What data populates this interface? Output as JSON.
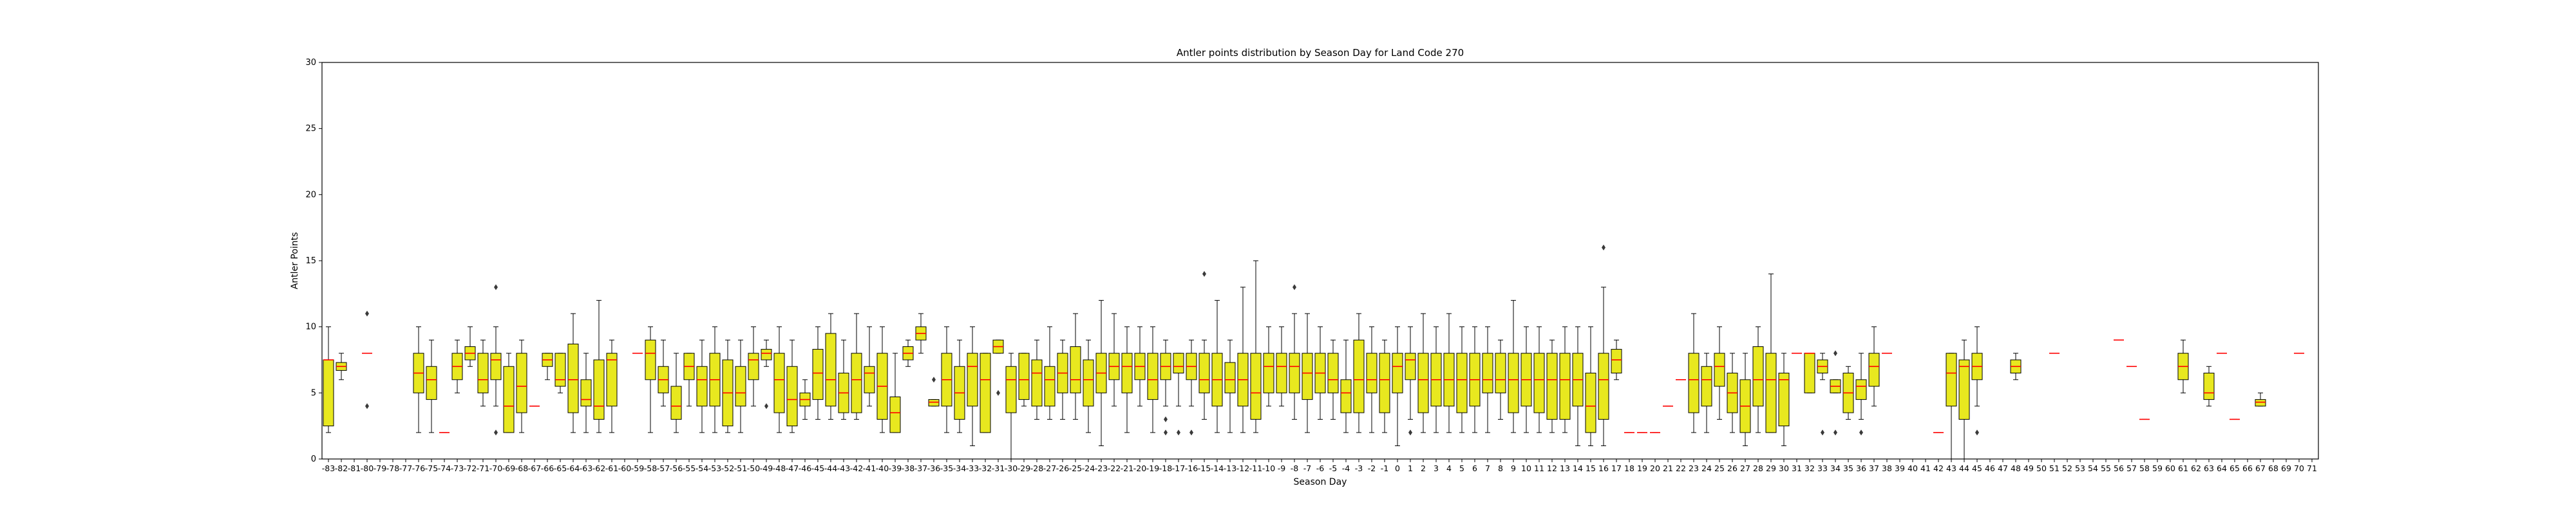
{
  "chart_data": {
    "type": "box",
    "title": "Antler points distribution by Season Day for Land Code 270",
    "xlabel": "Season Day",
    "ylabel": "Antler Points",
    "ylim": [
      0,
      30
    ],
    "yticks": [
      0,
      5,
      10,
      15,
      20,
      25,
      30
    ],
    "grid": false,
    "colors": {
      "box_fill": "#e8e81f",
      "median": "#ff0000",
      "edge": "#000000"
    },
    "categories": [
      "-83",
      "-82",
      "-81",
      "-80",
      "-79",
      "-78",
      "-77",
      "-76",
      "-75",
      "-74",
      "-73",
      "-72",
      "-71",
      "-70",
      "-69",
      "-68",
      "-67",
      "-66",
      "-65",
      "-64",
      "-63",
      "-62",
      "-61",
      "-60",
      "-59",
      "-58",
      "-57",
      "-56",
      "-55",
      "-54",
      "-53",
      "-52",
      "-51",
      "-50",
      "-49",
      "-48",
      "-47",
      "-46",
      "-45",
      "-44",
      "-43",
      "-42",
      "-41",
      "-40",
      "-39",
      "-38",
      "-37",
      "-36",
      "-35",
      "-34",
      "-33",
      "-32",
      "-31",
      "-30",
      "-29",
      "-28",
      "-27",
      "-26",
      "-25",
      "-24",
      "-23",
      "-22",
      "-21",
      "-20",
      "-19",
      "-18",
      "-17",
      "-16",
      "-15",
      "-14",
      "-13",
      "-12",
      "-11",
      "-10",
      "-9",
      "-8",
      "-7",
      "-6",
      "-5",
      "-4",
      "-3",
      "-2",
      "-1",
      "0",
      "1",
      "2",
      "3",
      "4",
      "5",
      "6",
      "7",
      "8",
      "9",
      "10",
      "11",
      "12",
      "13",
      "14",
      "15",
      "16",
      "17",
      "18",
      "19",
      "20",
      "21",
      "22",
      "23",
      "24",
      "25",
      "26",
      "27",
      "28",
      "29",
      "30",
      "31",
      "32",
      "33",
      "34",
      "35",
      "36",
      "37",
      "38",
      "39",
      "40",
      "41",
      "42",
      "43",
      "44",
      "45",
      "46",
      "47",
      "48",
      "49",
      "50",
      "51",
      "52",
      "53",
      "54",
      "55",
      "56",
      "57",
      "58",
      "59",
      "60",
      "61",
      "62",
      "63",
      "64",
      "65",
      "66",
      "67",
      "68",
      "69",
      "70",
      "71"
    ],
    "boxes": {
      "-83": {
        "whislo": 2,
        "q1": 2.5,
        "med": 7.5,
        "q3": 7.5,
        "whishi": 10
      },
      "-82": {
        "whislo": 6,
        "q1": 6.7,
        "med": 7,
        "q3": 7.3,
        "whishi": 8
      },
      "-80": {
        "whislo": 8,
        "q1": 8,
        "med": 8,
        "q3": 8,
        "whishi": 8,
        "fliers": [
          11,
          4
        ]
      },
      "-76": {
        "whislo": 2,
        "q1": 5,
        "med": 6.5,
        "q3": 8,
        "whishi": 10
      },
      "-75": {
        "whislo": 2,
        "q1": 4.5,
        "med": 6,
        "q3": 7,
        "whishi": 9
      },
      "-74": {
        "whislo": 2,
        "q1": 2,
        "med": 2,
        "q3": 2,
        "whishi": 2
      },
      "-73": {
        "whislo": 5,
        "q1": 6,
        "med": 7,
        "q3": 8,
        "whishi": 9
      },
      "-72": {
        "whislo": 7,
        "q1": 7.5,
        "med": 8,
        "q3": 8.5,
        "whishi": 10
      },
      "-71": {
        "whislo": 4,
        "q1": 5,
        "med": 6,
        "q3": 8,
        "whishi": 9
      },
      "-70": {
        "whislo": 4,
        "q1": 6,
        "med": 7.5,
        "q3": 8,
        "whishi": 10,
        "fliers": [
          13,
          2
        ]
      },
      "-69": {
        "whislo": 2,
        "q1": 2,
        "med": 4,
        "q3": 7,
        "whishi": 8
      },
      "-68": {
        "whislo": 2,
        "q1": 3.5,
        "med": 5.5,
        "q3": 8,
        "whishi": 9
      },
      "-67": {
        "whislo": 4,
        "q1": 4,
        "med": 4,
        "q3": 4,
        "whishi": 4
      },
      "-66": {
        "whislo": 6,
        "q1": 7,
        "med": 7.5,
        "q3": 8,
        "whishi": 8
      },
      "-65": {
        "whislo": 5,
        "q1": 5.5,
        "med": 6,
        "q3": 8,
        "whishi": 8
      },
      "-64": {
        "whislo": 2,
        "q1": 3.5,
        "med": 6,
        "q3": 8.7,
        "whishi": 11
      },
      "-63": {
        "whislo": 2,
        "q1": 4,
        "med": 4.5,
        "q3": 6,
        "whishi": 8
      },
      "-62": {
        "whislo": 2,
        "q1": 3,
        "med": 4,
        "q3": 7.5,
        "whishi": 12
      },
      "-61": {
        "whislo": 2,
        "q1": 4,
        "med": 7.5,
        "q3": 8,
        "whishi": 9
      },
      "-59": {
        "whislo": 8,
        "q1": 8,
        "med": 8,
        "q3": 8,
        "whishi": 8
      },
      "-58": {
        "whislo": 2,
        "q1": 6,
        "med": 8,
        "q3": 9,
        "whishi": 10
      },
      "-57": {
        "whislo": 4,
        "q1": 5,
        "med": 6,
        "q3": 7,
        "whishi": 9
      },
      "-56": {
        "whislo": 2,
        "q1": 3,
        "med": 4,
        "q3": 5.5,
        "whishi": 8
      },
      "-55": {
        "whislo": 4,
        "q1": 6,
        "med": 7,
        "q3": 8,
        "whishi": 8
      },
      "-54": {
        "whislo": 2,
        "q1": 4,
        "med": 6,
        "q3": 7,
        "whishi": 9
      },
      "-53": {
        "whislo": 2,
        "q1": 4,
        "med": 6,
        "q3": 8,
        "whishi": 10
      },
      "-52": {
        "whislo": 2,
        "q1": 2.5,
        "med": 5,
        "q3": 7.5,
        "whishi": 9
      },
      "-51": {
        "whislo": 2,
        "q1": 4,
        "med": 5,
        "q3": 7,
        "whishi": 9
      },
      "-50": {
        "whislo": 4,
        "q1": 6,
        "med": 7.5,
        "q3": 8,
        "whishi": 10
      },
      "-49": {
        "whislo": 7,
        "q1": 7.5,
        "med": 8,
        "q3": 8.3,
        "whishi": 9,
        "fliers": [
          4
        ]
      },
      "-48": {
        "whislo": 2,
        "q1": 3.5,
        "med": 6,
        "q3": 8,
        "whishi": 10
      },
      "-47": {
        "whislo": 2,
        "q1": 2.5,
        "med": 4.5,
        "q3": 7,
        "whishi": 9
      },
      "-46": {
        "whislo": 3,
        "q1": 4,
        "med": 4.5,
        "q3": 5,
        "whishi": 6
      },
      "-45": {
        "whislo": 3,
        "q1": 4.5,
        "med": 6.5,
        "q3": 8.3,
        "whishi": 10
      },
      "-44": {
        "whislo": 3,
        "q1": 4,
        "med": 6,
        "q3": 9.5,
        "whishi": 11
      },
      "-43": {
        "whislo": 3,
        "q1": 3.5,
        "med": 5,
        "q3": 6.5,
        "whishi": 9
      },
      "-42": {
        "whislo": 3,
        "q1": 3.5,
        "med": 6,
        "q3": 8,
        "whishi": 11
      },
      "-41": {
        "whislo": 4,
        "q1": 5,
        "med": 6.5,
        "q3": 7,
        "whishi": 10
      },
      "-40": {
        "whislo": 2,
        "q1": 3,
        "med": 5.5,
        "q3": 8,
        "whishi": 10
      },
      "-39": {
        "whislo": 2,
        "q1": 2,
        "med": 3.5,
        "q3": 4.7,
        "whishi": 8
      },
      "-38": {
        "whislo": 7,
        "q1": 7.5,
        "med": 8,
        "q3": 8.5,
        "whishi": 9
      },
      "-37": {
        "whislo": 8,
        "q1": 9,
        "med": 9.5,
        "q3": 10,
        "whishi": 11
      },
      "-36": {
        "whislo": 4,
        "q1": 4,
        "med": 4.3,
        "q3": 4.5,
        "whishi": 4.5,
        "fliers": [
          6
        ]
      },
      "-35": {
        "whislo": 2,
        "q1": 4,
        "med": 6,
        "q3": 8,
        "whishi": 10
      },
      "-34": {
        "whislo": 2,
        "q1": 3,
        "med": 5,
        "q3": 7,
        "whishi": 9
      },
      "-33": {
        "whislo": 1,
        "q1": 4,
        "med": 7,
        "q3": 8,
        "whishi": 10
      },
      "-32": {
        "whislo": 2,
        "q1": 2,
        "med": 6,
        "q3": 8,
        "whishi": 8
      },
      "-31": {
        "whislo": 8,
        "q1": 8,
        "med": 8.5,
        "q3": 9,
        "whishi": 9,
        "fliers": [
          5
        ]
      },
      "-30": {
        "whislo": 0,
        "q1": 3.5,
        "med": 6,
        "q3": 7,
        "whishi": 8
      },
      "-29": {
        "whislo": 4,
        "q1": 4.5,
        "med": 6,
        "q3": 8,
        "whishi": 8
      },
      "-28": {
        "whislo": 3,
        "q1": 4,
        "med": 6.5,
        "q3": 7.5,
        "whishi": 9
      },
      "-27": {
        "whislo": 3,
        "q1": 4,
        "med": 6,
        "q3": 7,
        "whishi": 10
      },
      "-26": {
        "whislo": 3,
        "q1": 5,
        "med": 6.5,
        "q3": 8,
        "whishi": 9
      },
      "-25": {
        "whislo": 3,
        "q1": 5,
        "med": 6,
        "q3": 8.5,
        "whishi": 11
      },
      "-24": {
        "whislo": 2,
        "q1": 4,
        "med": 6,
        "q3": 7.5,
        "whishi": 9
      },
      "-23": {
        "whislo": 1,
        "q1": 5,
        "med": 6.5,
        "q3": 8,
        "whishi": 12
      },
      "-22": {
        "whislo": 4,
        "q1": 6,
        "med": 7,
        "q3": 8,
        "whishi": 11
      },
      "-21": {
        "whislo": 2,
        "q1": 5,
        "med": 7,
        "q3": 8,
        "whishi": 10
      },
      "-20": {
        "whislo": 4,
        "q1": 6,
        "med": 7,
        "q3": 8,
        "whishi": 10
      },
      "-19": {
        "whislo": 2,
        "q1": 4.5,
        "med": 6,
        "q3": 8,
        "whishi": 10
      },
      "-18": {
        "whislo": 4,
        "q1": 6,
        "med": 7,
        "q3": 8,
        "whishi": 9,
        "fliers": [
          3,
          2
        ]
      },
      "-17": {
        "whislo": 4,
        "q1": 6.5,
        "med": 7,
        "q3": 8,
        "whishi": 8,
        "fliers": [
          2
        ]
      },
      "-16": {
        "whislo": 4,
        "q1": 6,
        "med": 7,
        "q3": 8,
        "whishi": 9,
        "fliers": [
          2
        ]
      },
      "-15": {
        "whislo": 3,
        "q1": 5,
        "med": 6,
        "q3": 8,
        "whishi": 9,
        "fliers": [
          14
        ]
      },
      "-14": {
        "whislo": 2,
        "q1": 4,
        "med": 6,
        "q3": 8,
        "whishi": 12
      },
      "-13": {
        "whislo": 2,
        "q1": 5,
        "med": 6,
        "q3": 7.3,
        "whishi": 9
      },
      "-12": {
        "whislo": 2,
        "q1": 4,
        "med": 6,
        "q3": 8,
        "whishi": 13
      },
      "-11": {
        "whislo": 2,
        "q1": 3,
        "med": 5,
        "q3": 8,
        "whishi": 15
      },
      "-10": {
        "whislo": 4,
        "q1": 5,
        "med": 7,
        "q3": 8,
        "whishi": 10
      },
      "-9": {
        "whislo": 4,
        "q1": 5,
        "med": 7,
        "q3": 8,
        "whishi": 10
      },
      "-8": {
        "whislo": 3,
        "q1": 5,
        "med": 7,
        "q3": 8,
        "whishi": 11,
        "fliers": [
          13
        ]
      },
      "-7": {
        "whislo": 2,
        "q1": 4.5,
        "med": 6.5,
        "q3": 8,
        "whishi": 11
      },
      "-6": {
        "whislo": 3,
        "q1": 5,
        "med": 6.5,
        "q3": 8,
        "whishi": 10
      },
      "-5": {
        "whislo": 3,
        "q1": 5,
        "med": 6,
        "q3": 8,
        "whishi": 9
      },
      "-4": {
        "whislo": 2,
        "q1": 3.5,
        "med": 5,
        "q3": 6,
        "whishi": 9
      },
      "-3": {
        "whislo": 2,
        "q1": 3.5,
        "med": 6,
        "q3": 9,
        "whishi": 11
      },
      "-2": {
        "whislo": 2,
        "q1": 5,
        "med": 6,
        "q3": 8,
        "whishi": 10
      },
      "-1": {
        "whislo": 2,
        "q1": 3.5,
        "med": 6,
        "q3": 8,
        "whishi": 9
      },
      "0": {
        "whislo": 1,
        "q1": 5,
        "med": 7,
        "q3": 8,
        "whishi": 10
      },
      "1": {
        "whislo": 3,
        "q1": 6,
        "med": 7.5,
        "q3": 8,
        "whishi": 10,
        "fliers": [
          2
        ]
      },
      "2": {
        "whislo": 2,
        "q1": 3.5,
        "med": 6,
        "q3": 8,
        "whishi": 11
      },
      "3": {
        "whislo": 2,
        "q1": 4,
        "med": 6,
        "q3": 8,
        "whishi": 10
      },
      "4": {
        "whislo": 2,
        "q1": 4,
        "med": 6,
        "q3": 8,
        "whishi": 11
      },
      "5": {
        "whislo": 2,
        "q1": 3.5,
        "med": 6,
        "q3": 8,
        "whishi": 10
      },
      "6": {
        "whislo": 2,
        "q1": 4,
        "med": 6,
        "q3": 8,
        "whishi": 10
      },
      "7": {
        "whislo": 2,
        "q1": 5,
        "med": 6,
        "q3": 8,
        "whishi": 10
      },
      "8": {
        "whislo": 3,
        "q1": 5,
        "med": 6,
        "q3": 8,
        "whishi": 9
      },
      "9": {
        "whislo": 2,
        "q1": 3.5,
        "med": 6,
        "q3": 8,
        "whishi": 12
      },
      "10": {
        "whislo": 2,
        "q1": 4,
        "med": 6,
        "q3": 8,
        "whishi": 10
      },
      "11": {
        "whislo": 2,
        "q1": 3.5,
        "med": 6,
        "q3": 8,
        "whishi": 10
      },
      "12": {
        "whislo": 2,
        "q1": 3,
        "med": 6,
        "q3": 8,
        "whishi": 9
      },
      "13": {
        "whislo": 2,
        "q1": 3,
        "med": 6,
        "q3": 8,
        "whishi": 10
      },
      "14": {
        "whislo": 1,
        "q1": 4,
        "med": 6,
        "q3": 8,
        "whishi": 10
      },
      "15": {
        "whislo": 1,
        "q1": 2,
        "med": 4,
        "q3": 6.5,
        "whishi": 10
      },
      "16": {
        "whislo": 1,
        "q1": 3,
        "med": 6,
        "q3": 8,
        "whishi": 13,
        "fliers": [
          16
        ]
      },
      "17": {
        "whislo": 6,
        "q1": 6.5,
        "med": 7.5,
        "q3": 8.3,
        "whishi": 9
      },
      "18": {
        "whislo": 2,
        "q1": 2,
        "med": 2,
        "q3": 2,
        "whishi": 2
      },
      "19": {
        "whislo": 2,
        "q1": 2,
        "med": 2,
        "q3": 2,
        "whishi": 2
      },
      "20": {
        "whislo": 2,
        "q1": 2,
        "med": 2,
        "q3": 2,
        "whishi": 2
      },
      "21": {
        "whislo": 4,
        "q1": 4,
        "med": 4,
        "q3": 4,
        "whishi": 4
      },
      "22": {
        "whislo": 6,
        "q1": 6,
        "med": 6,
        "q3": 6,
        "whishi": 6
      },
      "23": {
        "whislo": 2,
        "q1": 3.5,
        "med": 6,
        "q3": 8,
        "whishi": 11
      },
      "24": {
        "whislo": 2,
        "q1": 4,
        "med": 6,
        "q3": 7,
        "whishi": 8
      },
      "25": {
        "whislo": 3,
        "q1": 5.5,
        "med": 7,
        "q3": 8,
        "whishi": 10
      },
      "26": {
        "whislo": 2,
        "q1": 3.5,
        "med": 5,
        "q3": 6.5,
        "whishi": 8
      },
      "27": {
        "whislo": 1,
        "q1": 2,
        "med": 4,
        "q3": 6,
        "whishi": 8
      },
      "28": {
        "whislo": 2,
        "q1": 4,
        "med": 6,
        "q3": 8.5,
        "whishi": 10
      },
      "29": {
        "whislo": 2,
        "q1": 2,
        "med": 6,
        "q3": 8,
        "whishi": 14
      },
      "30": {
        "whislo": 1,
        "q1": 2.5,
        "med": 6,
        "q3": 6.5,
        "whishi": 8
      },
      "31": {
        "whislo": 8,
        "q1": 8,
        "med": 8,
        "q3": 8,
        "whishi": 8
      },
      "32": {
        "whislo": 5,
        "q1": 5,
        "med": 8,
        "q3": 8,
        "whishi": 8
      },
      "33": {
        "whislo": 6,
        "q1": 6.5,
        "med": 7,
        "q3": 7.5,
        "whishi": 8,
        "fliers": [
          2
        ]
      },
      "34": {
        "whislo": 5,
        "q1": 5,
        "med": 5.5,
        "q3": 6,
        "whishi": 6,
        "fliers": [
          8,
          2
        ]
      },
      "35": {
        "whislo": 3,
        "q1": 3.5,
        "med": 5,
        "q3": 6.5,
        "whishi": 7
      },
      "36": {
        "whislo": 3,
        "q1": 4.5,
        "med": 5.5,
        "q3": 6,
        "whishi": 8,
        "fliers": [
          2
        ]
      },
      "37": {
        "whislo": 4,
        "q1": 5.5,
        "med": 7,
        "q3": 8,
        "whishi": 10
      },
      "38": {
        "whislo": 8,
        "q1": 8,
        "med": 8,
        "q3": 8,
        "whishi": 8
      },
      "42": {
        "whislo": 2,
        "q1": 2,
        "med": 2,
        "q3": 2,
        "whishi": 2
      },
      "43": {
        "whislo": 0,
        "q1": 4,
        "med": 6.5,
        "q3": 8,
        "whishi": 8
      },
      "44": {
        "whislo": 0,
        "q1": 3,
        "med": 7,
        "q3": 7.5,
        "whishi": 9
      },
      "45": {
        "whislo": 4,
        "q1": 6,
        "med": 7,
        "q3": 8,
        "whishi": 10,
        "fliers": [
          2
        ]
      },
      "48": {
        "whislo": 6,
        "q1": 6.5,
        "med": 7,
        "q3": 7.5,
        "whishi": 8
      },
      "51": {
        "whislo": 8,
        "q1": 8,
        "med": 8,
        "q3": 8,
        "whishi": 8
      },
      "56": {
        "whislo": 9,
        "q1": 9,
        "med": 9,
        "q3": 9,
        "whishi": 9
      },
      "57": {
        "whislo": 7,
        "q1": 7,
        "med": 7,
        "q3": 7,
        "whishi": 7
      },
      "58": {
        "whislo": 3,
        "q1": 3,
        "med": 3,
        "q3": 3,
        "whishi": 3
      },
      "61": {
        "whislo": 5,
        "q1": 6,
        "med": 7,
        "q3": 8,
        "whishi": 9
      },
      "63": {
        "whislo": 4,
        "q1": 4.5,
        "med": 5,
        "q3": 6.5,
        "whishi": 7
      },
      "64": {
        "whislo": 8,
        "q1": 8,
        "med": 8,
        "q3": 8,
        "whishi": 8
      },
      "65": {
        "whislo": 3,
        "q1": 3,
        "med": 3,
        "q3": 3,
        "whishi": 3
      },
      "67": {
        "whislo": 4,
        "q1": 4,
        "med": 4.3,
        "q3": 4.5,
        "whishi": 5
      },
      "70": {
        "whislo": 8,
        "q1": 8,
        "med": 8,
        "q3": 8,
        "whishi": 8
      }
    }
  }
}
